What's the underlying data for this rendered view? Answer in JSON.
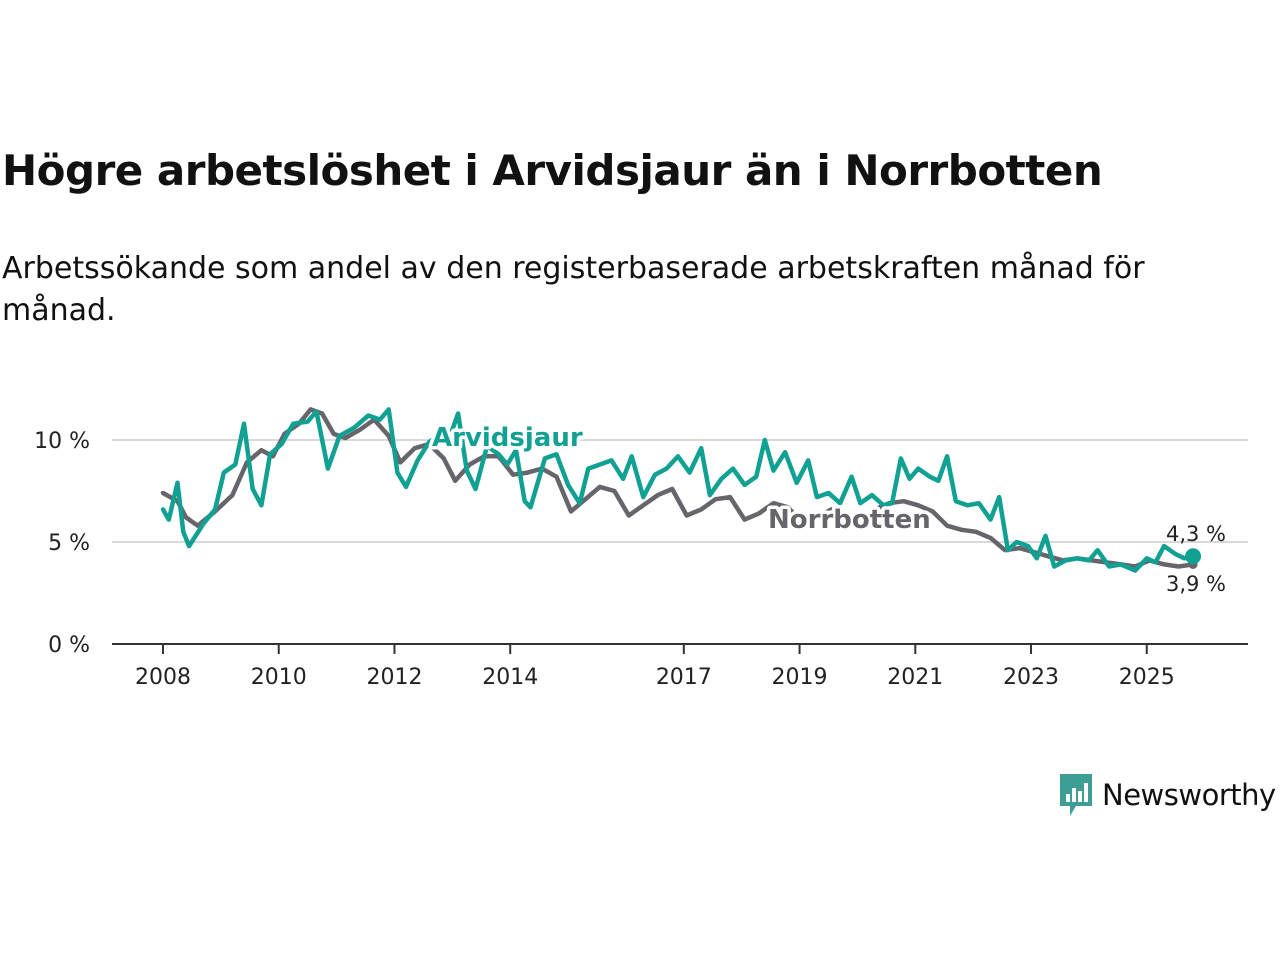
{
  "title": "Högre arbetslöshet i Arvidsjaur än i Norrbotten",
  "subtitle": "Arbetssökande som andel av den registerbaserade arbetskraften månad för månad.",
  "brand": {
    "name": "Newsworthy",
    "color": "#3c9e95",
    "icon": "newsworthy-logo-icon"
  },
  "colors": {
    "arvidsjaur": "#11a193",
    "norrbotten": "#67656b",
    "grid": "#d9d9d9",
    "axis": "#333333"
  },
  "chart_data": {
    "type": "line",
    "title": "Högre arbetslöshet i Arvidsjaur än i Norrbotten",
    "subtitle": "Arbetssökande som andel av den registerbaserade arbetskraften månad för månad.",
    "xlabel": "",
    "ylabel": "",
    "xlim": [
      2008.0,
      2025.92
    ],
    "ylim": [
      0,
      11.6
    ],
    "y_ticks": [
      {
        "value": 0,
        "label": "0 %"
      },
      {
        "value": 5,
        "label": "5 %"
      },
      {
        "value": 10,
        "label": "10 %"
      }
    ],
    "x_ticks": [
      {
        "value": 2008,
        "label": "2008"
      },
      {
        "value": 2010,
        "label": "2010"
      },
      {
        "value": 2012,
        "label": "2012"
      },
      {
        "value": 2014,
        "label": "2014"
      },
      {
        "value": 2017,
        "label": "2017"
      },
      {
        "value": 2019,
        "label": "2019"
      },
      {
        "value": 2021,
        "label": "2021"
      },
      {
        "value": 2023,
        "label": "2023"
      },
      {
        "value": 2025,
        "label": "2025"
      }
    ],
    "grid": "horizontal",
    "series": [
      {
        "name": "Norrbotten",
        "color": "#67656b",
        "end_label": "3,9 %",
        "anchors": [
          [
            2008.0,
            7.4
          ],
          [
            2008.25,
            7.0
          ],
          [
            2008.4,
            6.2
          ],
          [
            2008.6,
            5.8
          ],
          [
            2008.9,
            6.5
          ],
          [
            2009.2,
            7.3
          ],
          [
            2009.45,
            8.9
          ],
          [
            2009.7,
            9.5
          ],
          [
            2009.9,
            9.2
          ],
          [
            2010.1,
            10.3
          ],
          [
            2010.35,
            10.8
          ],
          [
            2010.55,
            11.5
          ],
          [
            2010.75,
            11.3
          ],
          [
            2010.95,
            10.3
          ],
          [
            2011.15,
            10.1
          ],
          [
            2011.4,
            10.5
          ],
          [
            2011.65,
            11.0
          ],
          [
            2011.9,
            10.2
          ],
          [
            2012.1,
            8.9
          ],
          [
            2012.35,
            9.6
          ],
          [
            2012.6,
            9.8
          ],
          [
            2012.85,
            9.1
          ],
          [
            2013.05,
            8.0
          ],
          [
            2013.3,
            8.8
          ],
          [
            2013.55,
            9.2
          ],
          [
            2013.8,
            9.2
          ],
          [
            2014.05,
            8.3
          ],
          [
            2014.3,
            8.4
          ],
          [
            2014.55,
            8.6
          ],
          [
            2014.8,
            8.2
          ],
          [
            2015.05,
            6.5
          ],
          [
            2015.3,
            7.1
          ],
          [
            2015.55,
            7.7
          ],
          [
            2015.8,
            7.5
          ],
          [
            2016.05,
            6.3
          ],
          [
            2016.3,
            6.8
          ],
          [
            2016.55,
            7.3
          ],
          [
            2016.8,
            7.6
          ],
          [
            2017.05,
            6.3
          ],
          [
            2017.3,
            6.6
          ],
          [
            2017.55,
            7.1
          ],
          [
            2017.8,
            7.2
          ],
          [
            2018.05,
            6.1
          ],
          [
            2018.3,
            6.4
          ],
          [
            2018.55,
            6.9
          ],
          [
            2018.8,
            6.7
          ],
          [
            2019.05,
            5.9
          ],
          [
            2019.3,
            6.2
          ],
          [
            2019.55,
            6.6
          ],
          [
            2019.8,
            6.4
          ],
          [
            2020.05,
            6.1
          ],
          [
            2020.3,
            6.6
          ],
          [
            2020.55,
            6.9
          ],
          [
            2020.8,
            7.0
          ],
          [
            2021.05,
            6.8
          ],
          [
            2021.3,
            6.5
          ],
          [
            2021.55,
            5.8
          ],
          [
            2021.8,
            5.6
          ],
          [
            2022.05,
            5.5
          ],
          [
            2022.3,
            5.2
          ],
          [
            2022.55,
            4.6
          ],
          [
            2022.8,
            4.7
          ],
          [
            2023.05,
            4.5
          ],
          [
            2023.3,
            4.3
          ],
          [
            2023.55,
            4.1
          ],
          [
            2023.8,
            4.2
          ],
          [
            2024.05,
            4.1
          ],
          [
            2024.3,
            4.0
          ],
          [
            2024.55,
            3.9
          ],
          [
            2024.8,
            3.8
          ],
          [
            2025.05,
            4.1
          ],
          [
            2025.3,
            3.9
          ],
          [
            2025.55,
            3.8
          ],
          [
            2025.8,
            3.9
          ]
        ]
      },
      {
        "name": "Arvidsjaur",
        "color": "#11a193",
        "end_label": "4,3 %",
        "anchors": [
          [
            2008.0,
            6.6
          ],
          [
            2008.1,
            6.1
          ],
          [
            2008.25,
            7.9
          ],
          [
            2008.35,
            5.5
          ],
          [
            2008.45,
            4.8
          ],
          [
            2008.7,
            5.9
          ],
          [
            2008.9,
            6.6
          ],
          [
            2009.05,
            8.4
          ],
          [
            2009.25,
            8.8
          ],
          [
            2009.4,
            10.8
          ],
          [
            2009.55,
            7.6
          ],
          [
            2009.7,
            6.8
          ],
          [
            2009.85,
            9.3
          ],
          [
            2010.05,
            9.8
          ],
          [
            2010.25,
            10.8
          ],
          [
            2010.5,
            10.9
          ],
          [
            2010.65,
            11.4
          ],
          [
            2010.85,
            8.6
          ],
          [
            2011.05,
            10.2
          ],
          [
            2011.3,
            10.6
          ],
          [
            2011.55,
            11.2
          ],
          [
            2011.75,
            11.0
          ],
          [
            2011.9,
            11.5
          ],
          [
            2012.05,
            8.4
          ],
          [
            2012.2,
            7.7
          ],
          [
            2012.4,
            9.0
          ],
          [
            2012.6,
            9.9
          ],
          [
            2012.8,
            10.3
          ],
          [
            2012.95,
            10.1
          ],
          [
            2013.1,
            11.3
          ],
          [
            2013.25,
            8.5
          ],
          [
            2013.4,
            7.6
          ],
          [
            2013.6,
            9.7
          ],
          [
            2013.8,
            9.3
          ],
          [
            2013.95,
            8.8
          ],
          [
            2014.1,
            9.5
          ],
          [
            2014.25,
            7.0
          ],
          [
            2014.35,
            6.7
          ],
          [
            2014.6,
            9.1
          ],
          [
            2014.8,
            9.3
          ],
          [
            2015.0,
            7.8
          ],
          [
            2015.2,
            6.9
          ],
          [
            2015.35,
            8.6
          ],
          [
            2015.55,
            8.8
          ],
          [
            2015.75,
            9.0
          ],
          [
            2015.95,
            8.1
          ],
          [
            2016.1,
            9.2
          ],
          [
            2016.3,
            7.2
          ],
          [
            2016.5,
            8.3
          ],
          [
            2016.7,
            8.6
          ],
          [
            2016.9,
            9.2
          ],
          [
            2017.1,
            8.4
          ],
          [
            2017.3,
            9.6
          ],
          [
            2017.45,
            7.3
          ],
          [
            2017.65,
            8.1
          ],
          [
            2017.85,
            8.6
          ],
          [
            2018.05,
            7.8
          ],
          [
            2018.25,
            8.2
          ],
          [
            2018.4,
            10.0
          ],
          [
            2018.55,
            8.5
          ],
          [
            2018.75,
            9.4
          ],
          [
            2018.95,
            7.9
          ],
          [
            2019.15,
            9.0
          ],
          [
            2019.3,
            7.2
          ],
          [
            2019.5,
            7.4
          ],
          [
            2019.7,
            6.9
          ],
          [
            2019.9,
            8.2
          ],
          [
            2020.05,
            6.9
          ],
          [
            2020.25,
            7.3
          ],
          [
            2020.45,
            6.8
          ],
          [
            2020.6,
            6.9
          ],
          [
            2020.75,
            9.1
          ],
          [
            2020.9,
            8.1
          ],
          [
            2021.05,
            8.6
          ],
          [
            2021.25,
            8.2
          ],
          [
            2021.4,
            8.0
          ],
          [
            2021.55,
            9.2
          ],
          [
            2021.7,
            7.0
          ],
          [
            2021.9,
            6.8
          ],
          [
            2022.1,
            6.9
          ],
          [
            2022.3,
            6.1
          ],
          [
            2022.45,
            7.2
          ],
          [
            2022.6,
            4.6
          ],
          [
            2022.75,
            5.0
          ],
          [
            2022.95,
            4.8
          ],
          [
            2023.1,
            4.2
          ],
          [
            2023.25,
            5.3
          ],
          [
            2023.4,
            3.8
          ],
          [
            2023.6,
            4.1
          ],
          [
            2023.8,
            4.2
          ],
          [
            2024.0,
            4.1
          ],
          [
            2024.15,
            4.6
          ],
          [
            2024.35,
            3.8
          ],
          [
            2024.55,
            3.9
          ],
          [
            2024.8,
            3.6
          ],
          [
            2025.0,
            4.2
          ],
          [
            2025.15,
            4.0
          ],
          [
            2025.3,
            4.8
          ],
          [
            2025.5,
            4.4
          ],
          [
            2025.65,
            4.2
          ],
          [
            2025.8,
            4.3
          ]
        ]
      }
    ]
  }
}
